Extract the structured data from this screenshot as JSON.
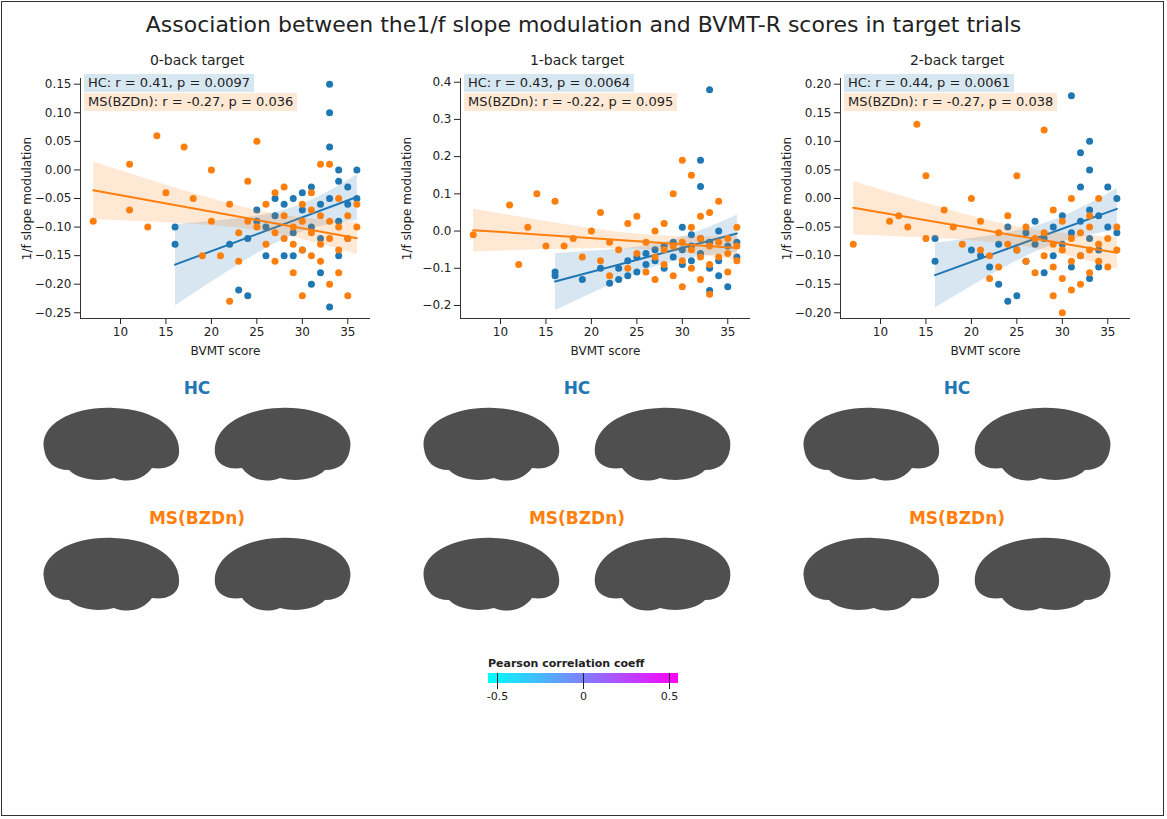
{
  "title": "Association between the1/f slope modulation and BVMT-R scores in target trials",
  "chart_data": [
    {
      "type": "scatter",
      "title": "0-back target",
      "x_label": "BVMT score",
      "y_label": "1/f slope modulation",
      "xlim": [
        5.6,
        37.5
      ],
      "xticks": [
        10,
        15,
        20,
        25,
        30,
        35
      ],
      "ylim": [
        -0.26,
        0.16
      ],
      "yticks": [
        {
          "value": -0.25,
          "label": "−0.25"
        },
        {
          "value": -0.2,
          "label": "−0.20"
        },
        {
          "value": -0.15,
          "label": "−0.15"
        },
        {
          "value": -0.1,
          "label": "−0.10"
        },
        {
          "value": -0.05,
          "label": "−0.05"
        },
        {
          "value": 0,
          "label": "0.00"
        },
        0.05,
        {
          "value": 0.1,
          "label": "0.10"
        },
        0.15
      ],
      "annotations": [
        "HC: r = 0.41, p = 0.0097",
        "MS(BZDn): r = -0.27, p = 0.036"
      ],
      "series": [
        {
          "name": "HC",
          "color": "#1f77b4",
          "x": [
            16,
            16,
            22,
            23,
            24,
            24,
            25,
            25,
            26,
            27,
            27,
            28,
            28,
            29,
            29,
            30,
            30,
            30,
            31,
            31,
            32,
            32,
            32,
            33,
            33,
            33,
            33,
            33,
            34,
            34,
            34,
            35,
            35,
            36,
            36,
            31,
            29,
            26,
            35,
            34
          ],
          "values": [
            -0.13,
            -0.1,
            -0.13,
            -0.21,
            -0.22,
            -0.12,
            -0.07,
            -0.09,
            -0.1,
            -0.08,
            -0.05,
            -0.06,
            -0.15,
            -0.05,
            -0.11,
            -0.04,
            -0.07,
            -0.14,
            -0.03,
            -0.1,
            -0.06,
            -0.12,
            -0.18,
            0.15,
            0.1,
            0.04,
            -0.24,
            -0.05,
            0.0,
            -0.09,
            -0.02,
            -0.03,
            -0.12,
            0.0,
            -0.05,
            -0.2,
            -0.15,
            -0.15,
            -0.06,
            -0.15
          ]
        },
        {
          "name": "MS(BZDn)",
          "color": "#ff7f0e",
          "x": [
            7,
            11,
            11,
            13,
            14,
            15,
            17,
            18,
            19,
            20,
            20,
            21,
            22,
            22,
            23,
            23,
            24,
            24,
            25,
            25,
            26,
            26,
            27,
            27,
            27,
            28,
            28,
            28,
            29,
            29,
            29,
            30,
            30,
            30,
            30,
            31,
            31,
            31,
            32,
            32,
            32,
            32,
            33,
            33,
            33,
            33,
            34,
            34,
            34,
            35,
            35,
            35,
            36,
            36,
            34,
            31
          ],
          "values": [
            -0.09,
            0.01,
            -0.07,
            -0.1,
            0.06,
            -0.04,
            0.04,
            -0.05,
            -0.15,
            0.0,
            -0.09,
            -0.15,
            -0.06,
            -0.23,
            -0.11,
            -0.16,
            -0.02,
            -0.09,
            -0.1,
            0.05,
            -0.13,
            -0.06,
            -0.04,
            -0.11,
            -0.16,
            -0.08,
            -0.12,
            -0.03,
            -0.1,
            -0.18,
            -0.13,
            -0.06,
            -0.09,
            -0.14,
            -0.22,
            -0.07,
            -0.11,
            -0.04,
            -0.08,
            -0.13,
            -0.16,
            0.01,
            -0.09,
            -0.12,
            -0.2,
            0.01,
            -0.05,
            -0.1,
            -0.14,
            -0.08,
            -0.12,
            -0.22,
            -0.06,
            -0.1,
            -0.18,
            -0.15
          ]
        }
      ]
    },
    {
      "type": "scatter",
      "title": "1-back target",
      "x_label": "BVMT score",
      "y_label": "1/f slope modulation",
      "xlim": [
        5.6,
        37.5
      ],
      "xticks": [
        10,
        15,
        20,
        25,
        30,
        35
      ],
      "ylim": [
        -0.235,
        0.41
      ],
      "yticks": [
        {
          "value": -0.2,
          "label": "−0.2"
        },
        {
          "value": -0.1,
          "label": "−0.1"
        },
        {
          "value": 0,
          "label": "0.0"
        },
        0.1,
        0.2,
        0.3,
        0.4
      ],
      "annotations": [
        "HC: r = 0.43, p = 0.0064",
        "MS(BZDn): r = -0.22, p = 0.095"
      ],
      "series": [
        {
          "name": "HC",
          "color": "#1f77b4",
          "x": [
            16,
            16,
            19,
            21,
            22,
            23,
            23,
            24,
            24,
            25,
            25,
            26,
            26,
            27,
            27,
            28,
            28,
            29,
            29,
            30,
            30,
            30,
            31,
            31,
            32,
            32,
            32,
            32,
            33,
            33,
            33,
            33,
            34,
            34,
            35,
            35,
            36,
            36,
            34,
            31
          ],
          "values": [
            -0.11,
            -0.12,
            -0.13,
            -0.1,
            -0.14,
            -0.13,
            -0.1,
            -0.08,
            -0.12,
            -0.07,
            -0.11,
            -0.06,
            -0.09,
            -0.05,
            -0.08,
            -0.04,
            -0.1,
            -0.03,
            -0.07,
            -0.05,
            -0.09,
            0.01,
            -0.04,
            -0.08,
            0.19,
            0.12,
            -0.02,
            -0.06,
            0.38,
            -0.1,
            -0.16,
            -0.03,
            -0.08,
            0.0,
            -0.04,
            -0.15,
            -0.03,
            -0.07,
            -0.12,
            -0.01
          ]
        },
        {
          "name": "MS(BZDn)",
          "color": "#ff7f0e",
          "x": [
            7,
            11,
            12,
            13,
            14,
            15,
            16,
            17,
            18,
            19,
            20,
            21,
            21,
            22,
            22,
            23,
            24,
            24,
            25,
            25,
            26,
            26,
            27,
            27,
            27,
            28,
            28,
            28,
            29,
            29,
            29,
            30,
            30,
            30,
            30,
            31,
            31,
            31,
            31,
            32,
            32,
            32,
            33,
            33,
            33,
            33,
            34,
            34,
            34,
            35,
            35,
            35,
            36,
            36,
            36,
            32
          ],
          "values": [
            -0.01,
            0.07,
            -0.09,
            0.01,
            0.1,
            -0.04,
            0.08,
            -0.04,
            -0.02,
            -0.07,
            0.0,
            -0.08,
            0.05,
            -0.03,
            -0.12,
            -0.05,
            0.02,
            -0.1,
            -0.06,
            0.04,
            -0.03,
            -0.11,
            0.0,
            -0.07,
            -0.13,
            -0.05,
            0.02,
            -0.09,
            -0.04,
            0.1,
            -0.12,
            0.19,
            -0.03,
            -0.08,
            -0.15,
            0.15,
            -0.05,
            -0.1,
            0.01,
            -0.02,
            -0.07,
            -0.13,
            0.05,
            -0.04,
            -0.09,
            -0.17,
            -0.03,
            -0.07,
            0.08,
            -0.02,
            -0.06,
            -0.11,
            -0.04,
            -0.08,
            0.01,
            0.04
          ]
        }
      ]
    },
    {
      "type": "scatter",
      "title": "2-back target",
      "x_label": "BVMT score",
      "y_label": "1/f slope modulation",
      "xlim": [
        5.6,
        37.5
      ],
      "xticks": [
        10,
        15,
        20,
        25,
        30,
        35
      ],
      "ylim": [
        -0.21,
        0.21
      ],
      "yticks": [
        {
          "value": -0.2,
          "label": "−0.20"
        },
        {
          "value": -0.15,
          "label": "−0.15"
        },
        {
          "value": -0.1,
          "label": "−0.10"
        },
        {
          "value": -0.05,
          "label": "−0.05"
        },
        {
          "value": 0,
          "label": "0.00"
        },
        0.05,
        {
          "value": 0.1,
          "label": "0.10"
        },
        0.15,
        {
          "value": 0.2,
          "label": "0.20"
        }
      ],
      "annotations": [
        "HC: r = 0.44, p = 0.0061",
        "MS(BZDn): r = -0.27, p = 0.038"
      ],
      "series": [
        {
          "name": "HC",
          "color": "#1f77b4",
          "x": [
            16,
            16,
            20,
            21,
            22,
            23,
            23,
            24,
            24,
            25,
            25,
            26,
            26,
            27,
            27,
            28,
            28,
            29,
            29,
            30,
            30,
            31,
            31,
            31,
            32,
            32,
            32,
            32,
            33,
            33,
            33,
            33,
            33,
            34,
            34,
            35,
            35,
            36,
            36,
            34
          ],
          "values": [
            -0.07,
            -0.11,
            -0.09,
            -0.1,
            -0.12,
            -0.15,
            -0.08,
            -0.18,
            -0.05,
            -0.17,
            -0.09,
            -0.06,
            -0.11,
            -0.04,
            -0.08,
            -0.07,
            -0.13,
            -0.05,
            -0.1,
            -0.03,
            -0.08,
            -0.06,
            0.18,
            -0.12,
            0.08,
            0.02,
            -0.04,
            -0.1,
            0.1,
            0.05,
            -0.02,
            -0.07,
            -0.14,
            -0.03,
            -0.09,
            0.02,
            -0.05,
            0.0,
            -0.06,
            -0.12
          ]
        },
        {
          "name": "MS(BZDn)",
          "color": "#ff7f0e",
          "x": [
            7,
            11,
            12,
            13,
            14,
            15,
            15,
            17,
            18,
            19,
            20,
            21,
            21,
            22,
            22,
            23,
            23,
            24,
            24,
            25,
            25,
            26,
            26,
            27,
            27,
            28,
            28,
            28,
            29,
            29,
            29,
            30,
            30,
            30,
            30,
            31,
            31,
            31,
            32,
            32,
            32,
            33,
            33,
            33,
            34,
            34,
            34,
            35,
            35,
            36,
            36,
            33,
            31,
            29
          ],
          "values": [
            -0.08,
            -0.04,
            -0.03,
            -0.05,
            0.13,
            0.04,
            -0.07,
            -0.02,
            -0.05,
            -0.08,
            0.0,
            -0.09,
            -0.04,
            -0.1,
            -0.14,
            -0.06,
            -0.12,
            -0.03,
            -0.08,
            -0.09,
            0.04,
            -0.05,
            -0.11,
            -0.07,
            -0.13,
            0.12,
            -0.06,
            -0.1,
            -0.08,
            -0.12,
            -0.17,
            -0.04,
            -0.09,
            -0.14,
            -0.2,
            -0.07,
            -0.11,
            0.0,
            -0.06,
            -0.1,
            -0.15,
            -0.05,
            -0.09,
            -0.13,
            -0.08,
            -0.11,
            0.0,
            -0.07,
            -0.12,
            -0.09,
            -0.05,
            -0.03,
            -0.16,
            -0.02
          ]
        }
      ]
    }
  ],
  "brain_maps": {
    "rows": [
      "HC",
      "MS(BZDn)"
    ],
    "colorbar": {
      "label": "Pearson correlation coeff",
      "range": [
        -0.55,
        0.55
      ],
      "ticks": [
        -0.5,
        0,
        0.5
      ],
      "colors": [
        "#00ffff",
        "#ff00ff"
      ]
    }
  }
}
